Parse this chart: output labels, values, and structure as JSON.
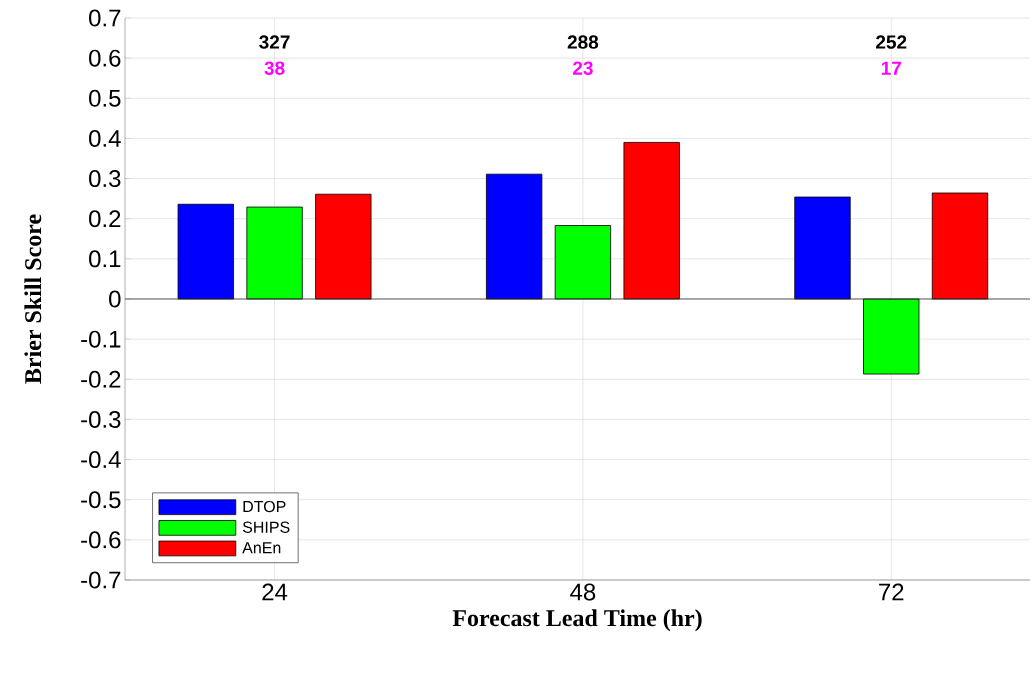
{
  "chart_data": {
    "type": "bar",
    "xlabel": "Forecast Lead Time (hr)",
    "ylabel": "Brier Skill Score",
    "categories": [
      "24",
      "48",
      "72"
    ],
    "series": [
      {
        "name": "DTOP",
        "color": "#0000ff",
        "values": [
          0.236,
          0.311,
          0.254
        ]
      },
      {
        "name": "SHIPS",
        "color": "#00ff00",
        "values": [
          0.229,
          0.183,
          -0.187
        ]
      },
      {
        "name": "AnEn",
        "color": "#ff0000",
        "values": [
          0.261,
          0.39,
          0.264
        ]
      }
    ],
    "ylim": [
      -0.7,
      0.7
    ],
    "yticks": [
      -0.7,
      -0.6,
      -0.5,
      -0.4,
      -0.3,
      -0.2,
      -0.1,
      0,
      0.1,
      0.2,
      0.3,
      0.4,
      0.5,
      0.6,
      0.7
    ],
    "grid": true,
    "legend": "bottom left",
    "annotations": [
      "327",
      "38",
      "288",
      "23",
      "252",
      "17"
    ]
  }
}
